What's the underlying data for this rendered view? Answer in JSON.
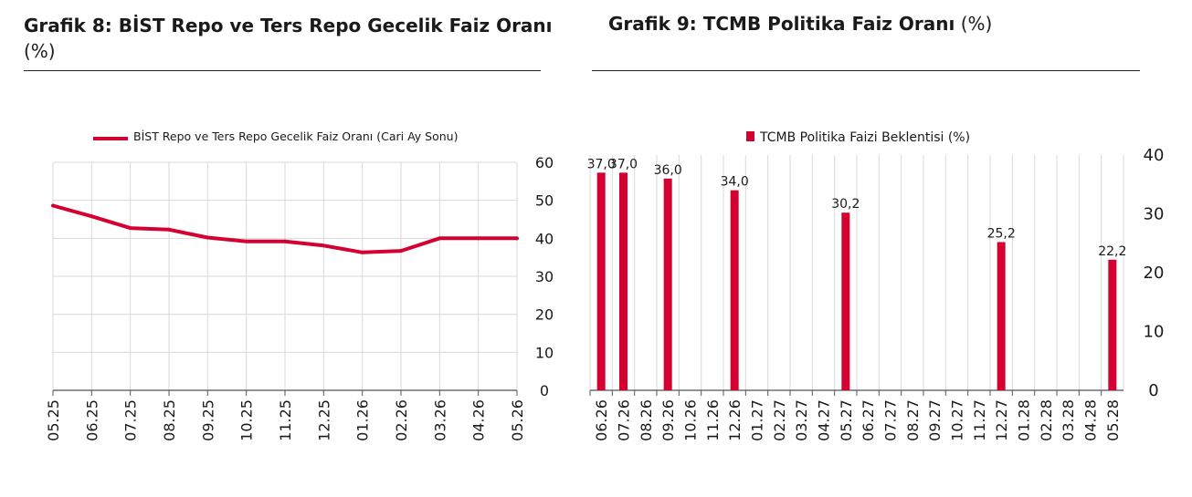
{
  "panels": [
    {
      "title_bold": "Grafik 8:  BİST Repo ve Ters Repo Gecelik Faiz Oranı",
      "title_unit": "(%)"
    },
    {
      "title_bold": "Grafik 9: TCMB Politika Faiz Oranı",
      "title_unit": "(%)"
    }
  ],
  "chart_data": [
    {
      "type": "line",
      "title": "",
      "categories": [
        "05.25",
        "06.25",
        "07.25",
        "08.25",
        "09.25",
        "10.25",
        "11.25",
        "12.25",
        "01.26",
        "02.26",
        "03.26",
        "04.26",
        "05.26"
      ],
      "series": [
        {
          "name": "BİST Repo ve Ters Repo Gecelik Faiz Oranı (Cari Ay Sonu)",
          "values": [
            48.6,
            45.8,
            42.7,
            42.3,
            40.2,
            39.2,
            39.2,
            38.1,
            36.3,
            36.7,
            40.0,
            40.0,
            40.0
          ]
        }
      ],
      "ylim": [
        0,
        60
      ],
      "yticks": [
        "0",
        "10",
        "20",
        "30",
        "40",
        "50",
        "60"
      ],
      "y_axis_side": "right",
      "grid": true,
      "legend": "top",
      "color": "#d50032"
    },
    {
      "type": "bar",
      "title": "",
      "categories": [
        "06.26",
        "07.26",
        "08.26",
        "09.26",
        "10.26",
        "11.26",
        "12.26",
        "01.27",
        "02.27",
        "03.27",
        "04.27",
        "05.27",
        "06.27",
        "07.27",
        "08.27",
        "09.27",
        "10.27",
        "11.27",
        "12.27",
        "01.28",
        "02.28",
        "03.28",
        "04.28",
        "05.28"
      ],
      "series": [
        {
          "name": "TCMB Politika Faizi Beklentisi (%)",
          "values": [
            37.0,
            37.0,
            null,
            36.0,
            null,
            null,
            34.0,
            null,
            null,
            null,
            null,
            30.2,
            null,
            null,
            null,
            null,
            null,
            null,
            25.2,
            null,
            null,
            null,
            null,
            22.2
          ]
        }
      ],
      "data_labels": [
        "37,0",
        "37,0",
        "",
        "36,0",
        "",
        "",
        "34,0",
        "",
        "",
        "",
        "",
        "30,2",
        "",
        "",
        "",
        "",
        "",
        "",
        "25,2",
        "",
        "",
        "",
        "",
        "22,2"
      ],
      "ylim": [
        0,
        40
      ],
      "yticks": [
        "0",
        "10",
        "20",
        "30",
        "40"
      ],
      "y_axis_side": "right",
      "grid": true,
      "legend": "top",
      "color": "#d50032"
    }
  ]
}
